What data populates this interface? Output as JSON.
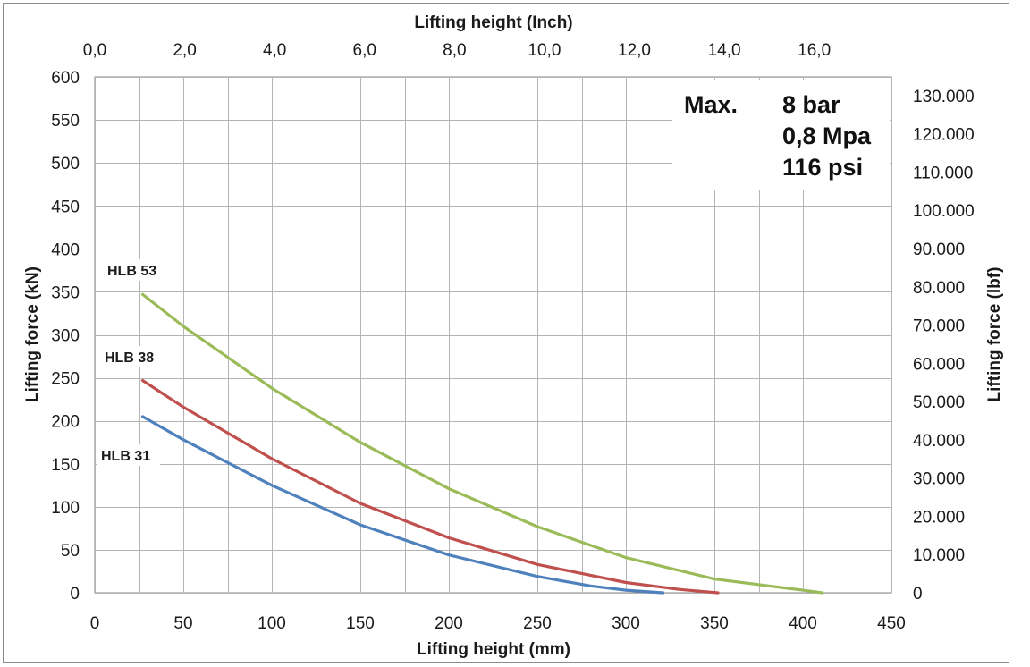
{
  "chart_data": {
    "type": "line",
    "x_bottom": {
      "label": "Lifting height (mm)",
      "range": [
        0,
        450
      ],
      "ticks": [
        0,
        50,
        100,
        150,
        200,
        250,
        300,
        350,
        400,
        450
      ],
      "tick_labels": [
        "0",
        "50",
        "100",
        "150",
        "200",
        "250",
        "300",
        "350",
        "400",
        "450"
      ]
    },
    "x_top": {
      "label": "Lifting height (Inch)",
      "ticks": [
        0,
        2,
        4,
        6,
        8,
        10,
        12,
        14,
        16
      ],
      "tick_labels": [
        "0,0",
        "2,0",
        "4,0",
        "6,0",
        "8,0",
        "10,0",
        "12,0",
        "14,0",
        "16,0"
      ]
    },
    "y_left": {
      "label": "Lifting force (kN)",
      "range": [
        0,
        600
      ],
      "ticks": [
        0,
        50,
        100,
        150,
        200,
        250,
        300,
        350,
        400,
        450,
        500,
        550,
        600
      ],
      "tick_labels": [
        "0",
        "50",
        "100",
        "150",
        "200",
        "250",
        "300",
        "350",
        "400",
        "450",
        "500",
        "550",
        "600"
      ]
    },
    "y_right": {
      "label": "Lifting force (lbf)",
      "ticks": [
        0,
        10000,
        20000,
        30000,
        40000,
        50000,
        60000,
        70000,
        80000,
        90000,
        100000,
        110000,
        120000,
        130000
      ],
      "tick_labels": [
        "0",
        "10.000",
        "20.000",
        "30.000",
        "40.000",
        "50.000",
        "60.000",
        "70.000",
        "80.000",
        "90.000",
        "100.000",
        "110.000",
        "120.000",
        "130.000"
      ]
    },
    "grid": true,
    "series": [
      {
        "name": "HLB 53",
        "color": "#9bbb59",
        "points": [
          [
            27,
            347
          ],
          [
            50,
            310
          ],
          [
            100,
            238
          ],
          [
            150,
            175
          ],
          [
            200,
            121
          ],
          [
            250,
            77
          ],
          [
            300,
            41
          ],
          [
            350,
            16
          ],
          [
            400,
            3
          ],
          [
            411,
            0
          ]
        ]
      },
      {
        "name": "HLB 38",
        "color": "#c0504d",
        "points": [
          [
            27,
            247
          ],
          [
            50,
            216
          ],
          [
            100,
            156
          ],
          [
            150,
            104
          ],
          [
            200,
            64
          ],
          [
            250,
            33
          ],
          [
            300,
            12
          ],
          [
            330,
            4
          ],
          [
            352,
            0
          ]
        ]
      },
      {
        "name": "HLB 31",
        "color": "#4f81bd",
        "points": [
          [
            27,
            205
          ],
          [
            50,
            178
          ],
          [
            100,
            125
          ],
          [
            150,
            79
          ],
          [
            200,
            44
          ],
          [
            250,
            19
          ],
          [
            280,
            8
          ],
          [
            300,
            3
          ],
          [
            321,
            0
          ]
        ]
      }
    ],
    "note": [
      "Max.",
      "8 bar",
      "0,8 Mpa",
      "116 psi"
    ]
  }
}
